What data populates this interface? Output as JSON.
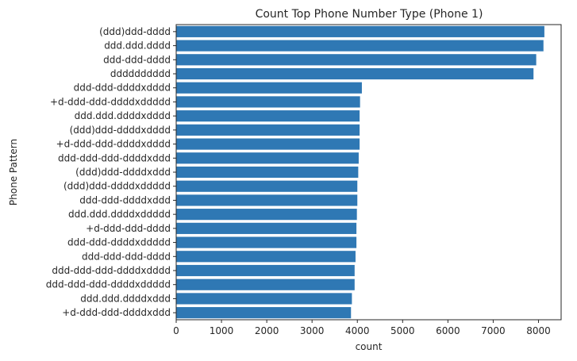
{
  "chart_data": {
    "type": "bar",
    "orientation": "horizontal",
    "title": "Count Top Phone Number Type (Phone 1)",
    "xlabel": "count",
    "ylabel": "Phone Pattern",
    "xlim": [
      0,
      8500
    ],
    "xticks": [
      0,
      1000,
      2000,
      3000,
      4000,
      5000,
      6000,
      7000,
      8000
    ],
    "grid": false,
    "bar_color": "#2f78b4",
    "categories": [
      "(ddd)ddd-dddd",
      "ddd.ddd.dddd",
      "ddd-ddd-dddd",
      "dddddddddd",
      "ddd-ddd-ddddxdddd",
      "+d-ddd-ddd-ddddxddddd",
      "ddd.ddd.ddddxdddd",
      "(ddd)ddd-ddddxdddd",
      "+d-ddd-ddd-ddddxdddd",
      "ddd-ddd-ddd-ddddxddd",
      "(ddd)ddd-ddddxddd",
      "(ddd)ddd-ddddxddddd",
      "ddd-ddd-ddddxddd",
      "ddd.ddd.ddddxddddd",
      "+d-ddd-ddd-dddd",
      "ddd-ddd-ddddxddddd",
      "ddd-ddd-ddd-dddd",
      "ddd-ddd-ddd-ddddxdddd",
      "ddd-ddd-ddd-ddddxddddd",
      "ddd.ddd.ddddxddd",
      "+d-ddd-ddd-ddddxddd"
    ],
    "values": [
      8130,
      8110,
      7950,
      7890,
      4100,
      4060,
      4050,
      4050,
      4050,
      4030,
      4020,
      4000,
      4000,
      3990,
      3980,
      3980,
      3960,
      3940,
      3940,
      3880,
      3860
    ]
  }
}
